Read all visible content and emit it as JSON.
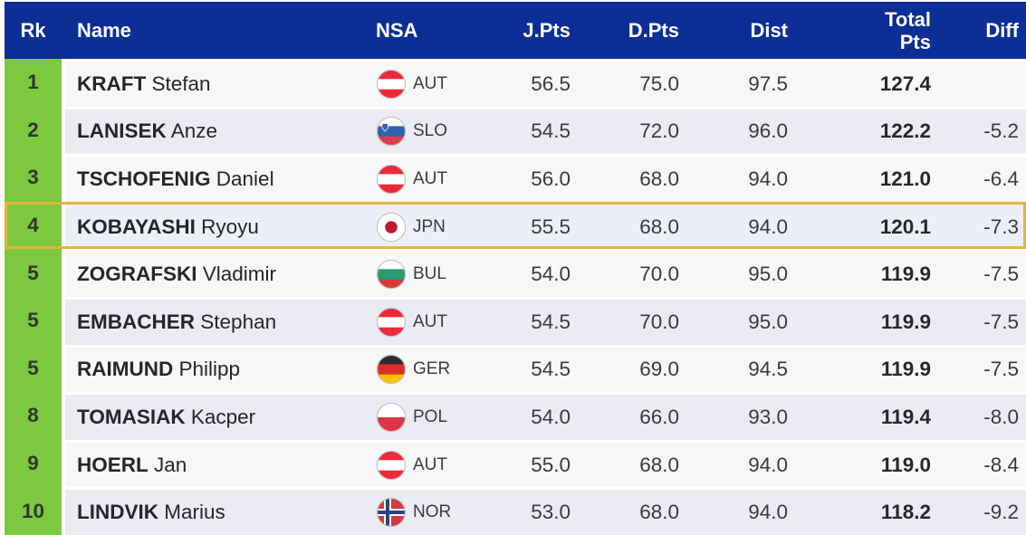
{
  "table": {
    "header": {
      "rk": "Rk",
      "name": "Name",
      "nsa": "NSA",
      "jpts": "J.Pts",
      "dpts": "D.Pts",
      "dist": "Dist",
      "total_line1": "Total",
      "total_line2": "Pts",
      "diff": "Diff"
    },
    "rows": [
      {
        "rank": "1",
        "surname": "KRAFT",
        "given": "Stefan",
        "nsa": "AUT",
        "jpts": "56.5",
        "dpts": "75.0",
        "dist": "97.5",
        "total": "127.4",
        "diff": "",
        "highlighted": false
      },
      {
        "rank": "2",
        "surname": "LANISEK",
        "given": "Anze",
        "nsa": "SLO",
        "jpts": "54.5",
        "dpts": "72.0",
        "dist": "96.0",
        "total": "122.2",
        "diff": "-5.2",
        "highlighted": false
      },
      {
        "rank": "3",
        "surname": "TSCHOFENIG",
        "given": "Daniel",
        "nsa": "AUT",
        "jpts": "56.0",
        "dpts": "68.0",
        "dist": "94.0",
        "total": "121.0",
        "diff": "-6.4",
        "highlighted": false
      },
      {
        "rank": "4",
        "surname": "KOBAYASHI",
        "given": "Ryoyu",
        "nsa": "JPN",
        "jpts": "55.5",
        "dpts": "68.0",
        "dist": "94.0",
        "total": "120.1",
        "diff": "-7.3",
        "highlighted": true
      },
      {
        "rank": "5",
        "surname": "ZOGRAFSKI",
        "given": "Vladimir",
        "nsa": "BUL",
        "jpts": "54.0",
        "dpts": "70.0",
        "dist": "95.0",
        "total": "119.9",
        "diff": "-7.5",
        "highlighted": false
      },
      {
        "rank": "5",
        "surname": "EMBACHER",
        "given": "Stephan",
        "nsa": "AUT",
        "jpts": "54.5",
        "dpts": "70.0",
        "dist": "95.0",
        "total": "119.9",
        "diff": "-7.5",
        "highlighted": false
      },
      {
        "rank": "5",
        "surname": "RAIMUND",
        "given": "Philipp",
        "nsa": "GER",
        "jpts": "54.5",
        "dpts": "69.0",
        "dist": "94.5",
        "total": "119.9",
        "diff": "-7.5",
        "highlighted": false
      },
      {
        "rank": "8",
        "surname": "TOMASIAK",
        "given": "Kacper",
        "nsa": "POL",
        "jpts": "54.0",
        "dpts": "66.0",
        "dist": "93.0",
        "total": "119.4",
        "diff": "-8.0",
        "highlighted": false
      },
      {
        "rank": "9",
        "surname": "HOERL",
        "given": "Jan",
        "nsa": "AUT",
        "jpts": "55.0",
        "dpts": "68.0",
        "dist": "94.0",
        "total": "119.0",
        "diff": "-8.4",
        "highlighted": false
      },
      {
        "rank": "10",
        "surname": "LINDVIK",
        "given": "Marius",
        "nsa": "NOR",
        "jpts": "53.0",
        "dpts": "68.0",
        "dist": "94.0",
        "total": "118.2",
        "diff": "-9.2",
        "highlighted": false
      }
    ]
  },
  "colors": {
    "header_bg": "#0d2e94",
    "rank_bg": "#7cc93f",
    "row_odd": "#f7f7f9",
    "row_even": "#ebecf3",
    "highlight_bg": "#edeff8",
    "highlight_border": "#e5b33c"
  },
  "flags": {
    "AUT": {
      "name": "austria-flag",
      "type": "hstripes",
      "stripes": [
        "#ED2939",
        "#FFFFFF",
        "#ED2939"
      ]
    },
    "SLO": {
      "name": "slovenia-flag",
      "type": "hstripes",
      "stripes": [
        "#FFFFFF",
        "#3063AE",
        "#DD3C4B"
      ],
      "emblem": "#3063AE"
    },
    "JPN": {
      "name": "japan-flag",
      "type": "disc",
      "bg": "#FFFFFF",
      "disc": "#BE1931"
    },
    "BUL": {
      "name": "bulgaria-flag",
      "type": "hstripes",
      "stripes": [
        "#FFFFFF",
        "#239E72",
        "#D53A3A"
      ]
    },
    "GER": {
      "name": "germany-flag",
      "type": "hstripes",
      "stripes": [
        "#2B2B2B",
        "#DD2E2E",
        "#F6C500"
      ]
    },
    "POL": {
      "name": "poland-flag",
      "type": "hstripes",
      "stripes": [
        "#FFFFFF",
        "#DC3545"
      ]
    },
    "NOR": {
      "name": "norway-flag",
      "type": "nordic",
      "bg": "#D23B42",
      "cross": "#2B4380",
      "outline": "#FFFFFF"
    }
  }
}
